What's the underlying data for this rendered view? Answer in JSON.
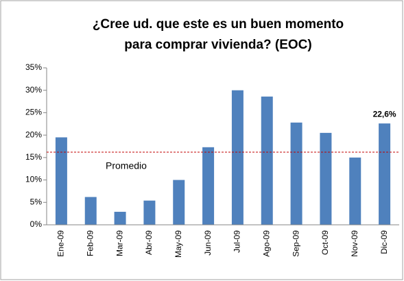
{
  "chart_data": {
    "type": "bar",
    "title": [
      "¿Cree ud. que este es un buen momento",
      "para comprar vivienda? (EOC)"
    ],
    "categories": [
      "Ene-09",
      "Feb-09",
      "Mar-09",
      "Abr-09",
      "May-09",
      "Jun-09",
      "Jul-09",
      "Ago-09",
      "Sep-09",
      "Oct-09",
      "Nov-09",
      "Dic-09"
    ],
    "values": [
      19.5,
      6.2,
      2.9,
      5.4,
      10.0,
      17.3,
      30.0,
      28.6,
      22.8,
      20.5,
      15.0,
      22.6
    ],
    "value_labels": [
      null,
      null,
      null,
      null,
      null,
      null,
      null,
      null,
      null,
      null,
      null,
      "22,6%"
    ],
    "value_label_color": "#558ed5",
    "color": "#4f81bd",
    "ylim": [
      0,
      35
    ],
    "yticks": [
      {
        "value": 0,
        "label": "0%"
      },
      {
        "value": 5,
        "label": "5%"
      },
      {
        "value": 10,
        "label": "10%"
      },
      {
        "value": 15,
        "label": "15%"
      },
      {
        "value": 20,
        "label": "20%"
      },
      {
        "value": 25,
        "label": "25%"
      },
      {
        "value": 30,
        "label": "30%"
      },
      {
        "value": 35,
        "label": "35%"
      }
    ],
    "reference_line": {
      "value": 16.2,
      "label": "Promedio",
      "color": "#c00000"
    }
  }
}
